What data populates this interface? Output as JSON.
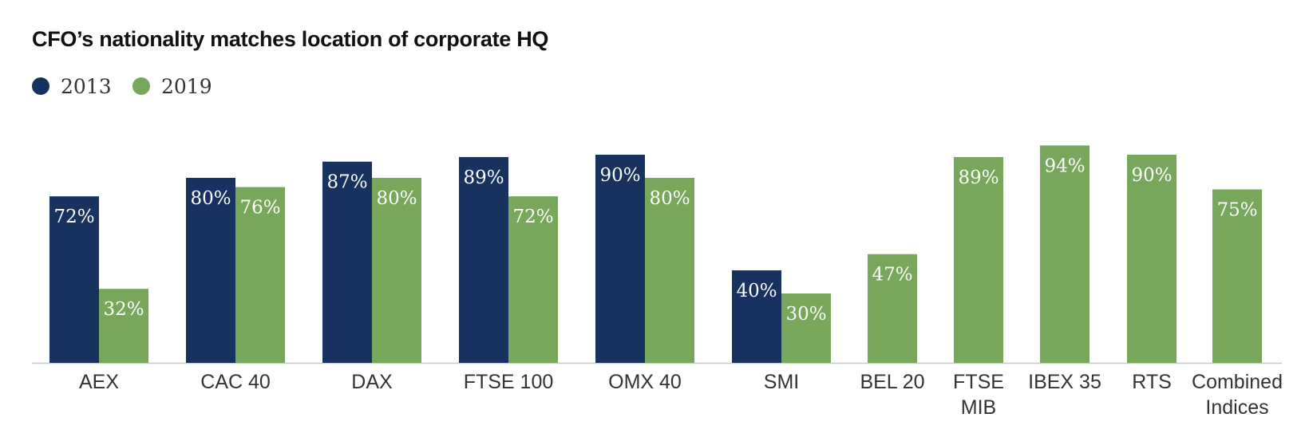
{
  "chart_data": {
    "type": "bar",
    "title": "CFO’s nationality matches location of corporate HQ",
    "categories": [
      "AEX",
      "CAC 40",
      "DAX",
      "FTSE 100",
      "OMX 40",
      "SMI",
      "BEL 20",
      "FTSE MIB",
      "IBEX 35",
      "RTS",
      "Combined Indices"
    ],
    "series": [
      {
        "name": "2013",
        "color": "#17325f",
        "values": [
          72,
          80,
          87,
          89,
          90,
          40,
          null,
          null,
          null,
          null,
          null
        ]
      },
      {
        "name": "2019",
        "color": "#77a75a",
        "values": [
          32,
          76,
          80,
          72,
          80,
          30,
          47,
          89,
          94,
          90,
          75
        ]
      }
    ],
    "value_suffix": "%",
    "ylim": [
      0,
      100
    ],
    "grid": false,
    "legend_position": "top-left"
  }
}
